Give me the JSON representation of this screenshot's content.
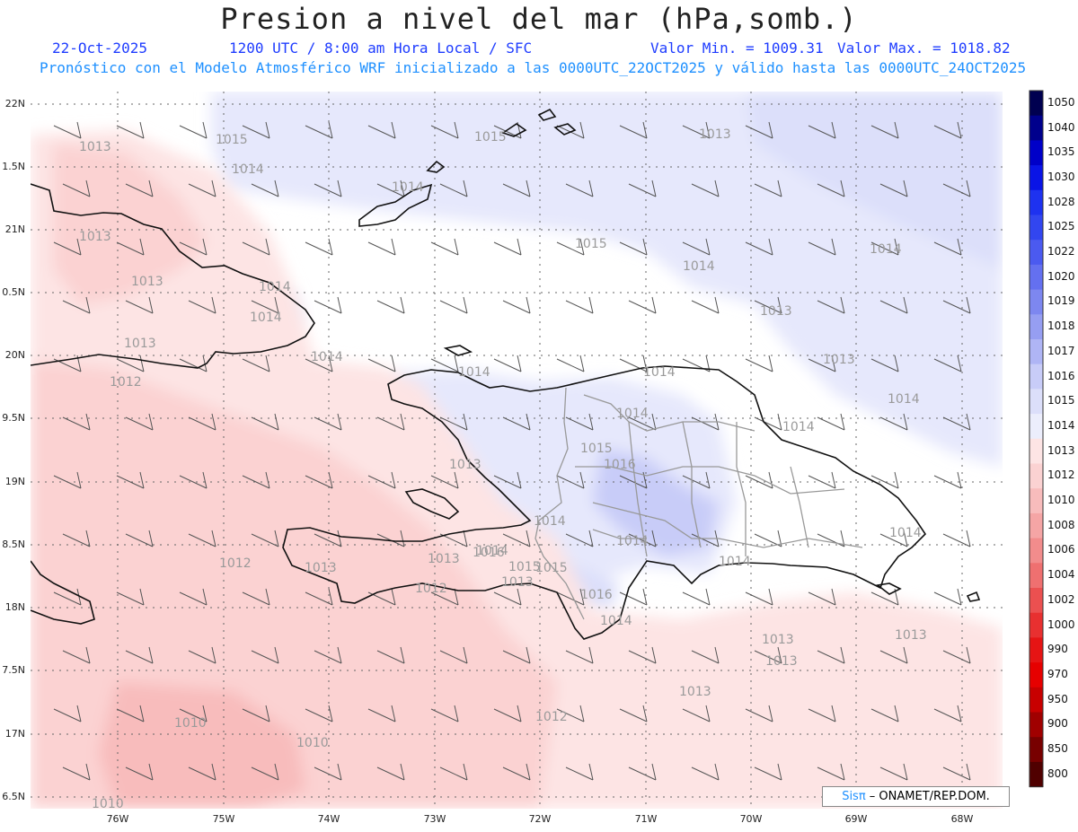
{
  "header": {
    "title": "Presion a nivel del mar (hPa,somb.)",
    "date": "22-Oct-2025",
    "time": "1200 UTC / 8:00 am Hora Local / SFC",
    "min": "Valor Min. = 1009.31",
    "max": "Valor Max. = 1018.82",
    "forecast": "Pronóstico con el Modelo Atmosférico WRF inicializado a las 0000UTC_22OCT2025 y válido hasta las  0000UTC_24OCT2025"
  },
  "axes": {
    "lat_labels": [
      "22N",
      "1.5N",
      "21N",
      "0.5N",
      "20N",
      "9.5N",
      "19N",
      "8.5N",
      "18N",
      "7.5N",
      "17N",
      "6.5N"
    ],
    "lon_labels": [
      "76W",
      "75W",
      "74W",
      "73W",
      "72W",
      "71W",
      "70W",
      "69W",
      "68W"
    ]
  },
  "colorbar": {
    "levels": [
      "1050",
      "1040",
      "1035",
      "1030",
      "1028",
      "1025",
      "1022",
      "1020",
      "1019",
      "1018",
      "1017",
      "1016",
      "1015",
      "1014",
      "1013",
      "1012",
      "1010",
      "1008",
      "1006",
      "1004",
      "1002",
      "1000",
      "990",
      "970",
      "950",
      "900",
      "850",
      "800"
    ],
    "colors": [
      "#000050",
      "#00008c",
      "#0000c8",
      "#0a14e6",
      "#1e32f0",
      "#3246f0",
      "#4b5af0",
      "#6470f0",
      "#7d87f0",
      "#969ef2",
      "#afb5f5",
      "#c8ccf8",
      "#dcdffa",
      "#eceefc",
      "#fde4e4",
      "#fbd2d2",
      "#f8bcbc",
      "#f5a5a5",
      "#f28c8c",
      "#ef7070",
      "#eb5050",
      "#e83030",
      "#e61414",
      "#e60000",
      "#c80000",
      "#a00000",
      "#780000",
      "#500000"
    ]
  },
  "map_labels": [
    {
      "text": "1013"
    },
    {
      "text": "1015"
    },
    {
      "text": "1014"
    },
    {
      "text": "1013"
    },
    {
      "text": "1015"
    },
    {
      "text": "1014"
    },
    {
      "text": "1013"
    },
    {
      "text": "1014"
    },
    {
      "text": "1014"
    },
    {
      "text": "1015"
    },
    {
      "text": "1013"
    },
    {
      "text": "1013"
    },
    {
      "text": "1014"
    },
    {
      "text": "1014"
    },
    {
      "text": "1013"
    },
    {
      "text": "1013"
    },
    {
      "text": "1014"
    },
    {
      "text": "1014"
    },
    {
      "text": "1014"
    },
    {
      "text": "1012"
    },
    {
      "text": "1014"
    },
    {
      "text": "1014"
    },
    {
      "text": "1015"
    },
    {
      "text": "1016"
    },
    {
      "text": "1013"
    },
    {
      "text": "1014"
    },
    {
      "text": "1014"
    },
    {
      "text": "1015"
    },
    {
      "text": "1016"
    },
    {
      "text": "1014"
    },
    {
      "text": "1013"
    },
    {
      "text": "1012"
    },
    {
      "text": "1014"
    },
    {
      "text": "1013"
    },
    {
      "text": "1015"
    },
    {
      "text": "1013"
    },
    {
      "text": "1016"
    },
    {
      "text": "1014"
    },
    {
      "text": "1012"
    },
    {
      "text": "1014"
    },
    {
      "text": "1013"
    },
    {
      "text": "1013"
    },
    {
      "text": "1013"
    },
    {
      "text": "1013"
    },
    {
      "text": "1012"
    },
    {
      "text": "1010"
    },
    {
      "text": "1010"
    },
    {
      "text": "1010"
    },
    {
      "text": "1014"
    }
  ],
  "credit": {
    "brand": "Sisπ",
    "sep": " – ",
    "org": "ONAMET/REP.DOM."
  }
}
